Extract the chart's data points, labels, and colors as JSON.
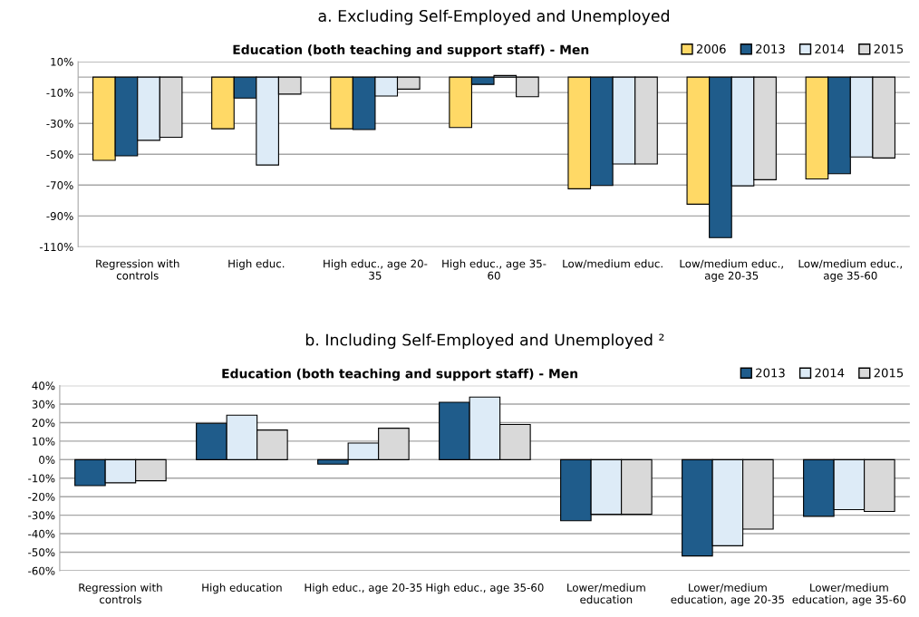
{
  "chart_data": [
    {
      "type": "bar",
      "title": "a. Excluding Self-Employed and Unemployed",
      "subtitle": "Education (both teaching and support staff) - Men",
      "categories": [
        "Regression with\ncontrols",
        "High educ.",
        "High educ., age 20-\n35",
        "High educ., age 35-\n60",
        "Low/medium educ.",
        "Low/medium educ.,\nage 20-35",
        "Low/medium educ.,\nage 35-60"
      ],
      "series": [
        {
          "name": "2006",
          "color": "#ffd966",
          "values": [
            -54,
            -33.5,
            -33.5,
            -32.7,
            -72.4,
            -82.4,
            -66
          ]
        },
        {
          "name": "2013",
          "color": "#1f5c8b",
          "values": [
            -51,
            -13.6,
            -34,
            -4.7,
            -70.3,
            -104,
            -62.6
          ]
        },
        {
          "name": "2014",
          "color": "#ddebf7",
          "values": [
            -41,
            -57,
            -12.3,
            1,
            -56.3,
            -70.5,
            -51.8
          ]
        },
        {
          "name": "2015",
          "color": "#d9d9d9",
          "values": [
            -39,
            -11,
            -7.8,
            -12.7,
            -56.3,
            -66.5,
            -52.4
          ]
        }
      ],
      "ylim": [
        -110,
        10
      ],
      "yticks": [
        {
          "value": 10,
          "label": "10%"
        },
        {
          "value": -10,
          "label": "-10%"
        },
        {
          "value": -30,
          "label": "-30%"
        },
        {
          "value": -50,
          "label": "-50%"
        },
        {
          "value": -70,
          "label": "-70%"
        },
        {
          "value": -90,
          "label": "-90%"
        },
        {
          "value": -110,
          "label": "-110%"
        }
      ],
      "grid": "y",
      "legend": "top right"
    },
    {
      "type": "bar",
      "title": "b. Including Self-Employed and Unemployed ²",
      "subtitle": "Education (both teaching and support staff) - Men",
      "categories": [
        "Regression with\ncontrols",
        "High education",
        "High educ., age 20-35",
        "High educ., age 35-60",
        "Lower/medium\neducation",
        "Lower/medium\neducation, age 20-35",
        "Lower/medium\neducation, age 35-60"
      ],
      "series": [
        {
          "name": "2013",
          "color": "#1f5c8b",
          "values": [
            -14,
            19.6,
            -2.4,
            31,
            -33,
            -52,
            -30.6
          ]
        },
        {
          "name": "2014",
          "color": "#ddebf7",
          "values": [
            -12.5,
            24,
            9,
            33.8,
            -29.5,
            -46.5,
            -27
          ]
        },
        {
          "name": "2015",
          "color": "#d9d9d9",
          "values": [
            -11.4,
            16,
            17,
            19,
            -29.5,
            -37.5,
            -28
          ]
        }
      ],
      "ylim": [
        -60,
        40
      ],
      "yticks": [
        {
          "value": 40,
          "label": "40%"
        },
        {
          "value": 30,
          "label": "30%"
        },
        {
          "value": 20,
          "label": "20%"
        },
        {
          "value": 10,
          "label": "10%"
        },
        {
          "value": 0,
          "label": "0%"
        },
        {
          "value": -10,
          "label": "-10%"
        },
        {
          "value": -20,
          "label": "-20%"
        },
        {
          "value": -30,
          "label": "-30%"
        },
        {
          "value": -40,
          "label": "-40%"
        },
        {
          "value": -50,
          "label": "-50%"
        },
        {
          "value": -60,
          "label": "-60%"
        }
      ],
      "grid": "y",
      "legend": "top right"
    }
  ]
}
